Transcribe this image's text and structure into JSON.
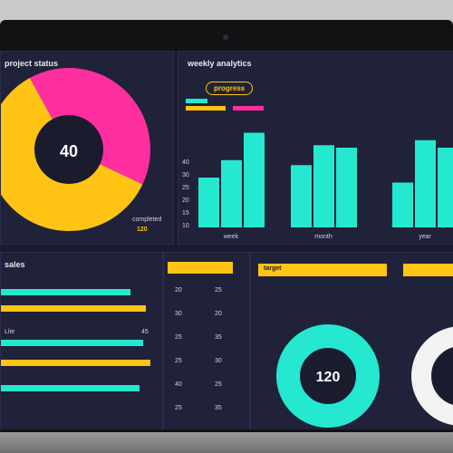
{
  "colors": {
    "pink": "#ff2fa0",
    "yellow": "#ffc414",
    "cyan": "#25e8d0",
    "white": "#f2f2f2",
    "dark": "#1a1c2e"
  },
  "pie_panel": {
    "title": "project status",
    "center_value": "40",
    "center_label": "",
    "footer": "completed",
    "footer_value": "120"
  },
  "bar_panel": {
    "title": "weekly analytics",
    "tag": "progress",
    "chip": "",
    "y_ticks": [
      "40",
      "30",
      "25",
      "20",
      "15",
      "10"
    ],
    "groups": [
      "week",
      "month",
      "year"
    ]
  },
  "hbar_panel": {
    "title": "sales",
    "rows": [
      {
        "label": "",
        "value": "",
        "pct": 0.82,
        "color": "#25e8d0"
      },
      {
        "label": "",
        "value": "",
        "pct": 0.92,
        "color": "#ffc414"
      },
      {
        "label": "Lite",
        "value": "45",
        "pct": 0.9,
        "color": "#25e8d0"
      },
      {
        "label": "",
        "value": "",
        "pct": 0.95,
        "color": "#ffc414"
      },
      {
        "label": "",
        "value": "",
        "pct": 0.88,
        "color": "#25e8d0"
      }
    ]
  },
  "table_panel": {
    "header": "",
    "rows": [
      {
        "a": "20",
        "b": "25"
      },
      {
        "a": "30",
        "b": "20"
      },
      {
        "a": "25",
        "b": "35"
      },
      {
        "a": "25",
        "b": "30"
      },
      {
        "a": "40",
        "b": "25"
      },
      {
        "a": "25",
        "b": "35"
      }
    ]
  },
  "donut_panel": {
    "header": "target",
    "center_value": "120",
    "donut2_header": "",
    "donut2_center_value": ""
  },
  "chart_data": [
    {
      "type": "pie",
      "categories": [
        "pink",
        "yellow"
      ],
      "values": [
        40,
        60
      ]
    },
    {
      "type": "bar",
      "categories": [
        "week",
        "month",
        "year"
      ],
      "series": [
        {
          "values": [
            20,
            25,
            18
          ]
        },
        {
          "values": [
            27,
            33,
            35
          ]
        },
        {
          "values": [
            38,
            32,
            32
          ]
        }
      ],
      "ylim": [
        0,
        40
      ]
    }
  ]
}
